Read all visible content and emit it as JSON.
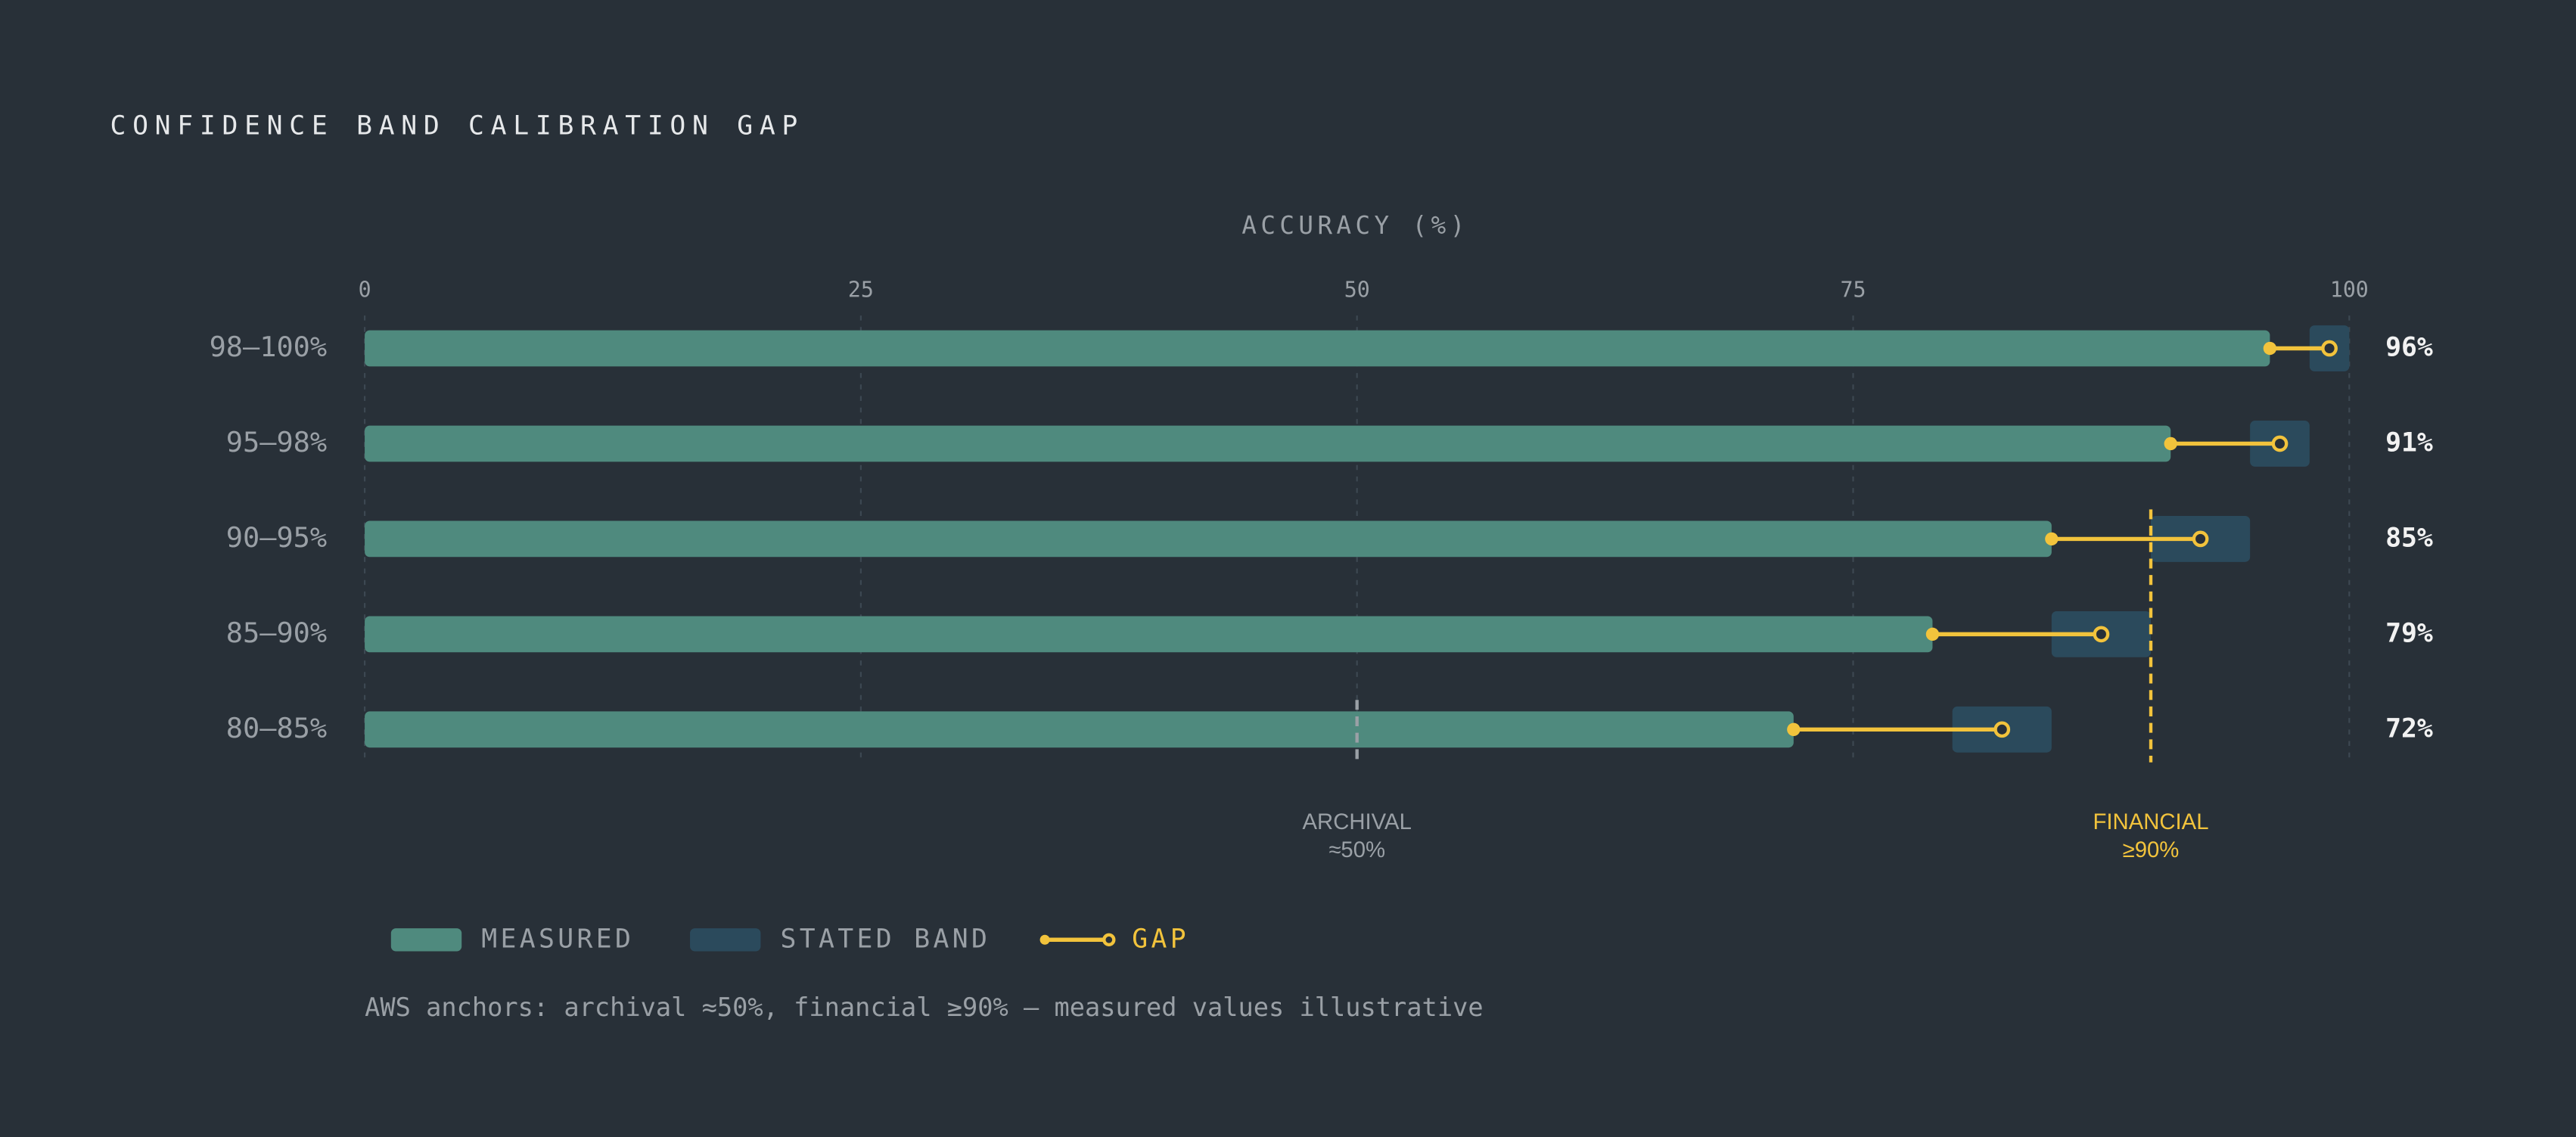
{
  "chart_data": {
    "type": "calibration",
    "title": "CONFIDENCE BAND CALIBRATION GAP",
    "x_label": "ACCURACY (%)",
    "categories": [
      "98–100%",
      "95–98%",
      "90–95%",
      "85–90%",
      "80–85%"
    ],
    "xlim": [
      0,
      100
    ],
    "xticks": [
      0,
      25,
      50,
      75,
      100
    ],
    "grid": true,
    "series": [
      {
        "name": "MEASURED",
        "color": "#4f8a7e",
        "values": [
          96,
          91,
          85,
          79,
          72
        ],
        "value_labels": [
          "96%",
          "91%",
          "85%",
          "79%",
          "72%"
        ]
      },
      {
        "name": "STATED BAND",
        "color": "#2b4a5c",
        "low": [
          98,
          95,
          90,
          85,
          80
        ],
        "high": [
          100,
          98,
          95,
          90,
          85
        ]
      },
      {
        "name": "GAP",
        "color": "#f2c33c"
      }
    ],
    "references": [
      {
        "name": "ARCHIVAL",
        "label": "≈50%",
        "value": 50,
        "color": "#9aa0a6"
      },
      {
        "name": "FINANCIAL",
        "label": "≥90%",
        "value": 90,
        "color": "#f2c33c"
      }
    ],
    "footnote": "AWS anchors: archival ≈50%, financial ≥90% — measured values illustrative"
  }
}
